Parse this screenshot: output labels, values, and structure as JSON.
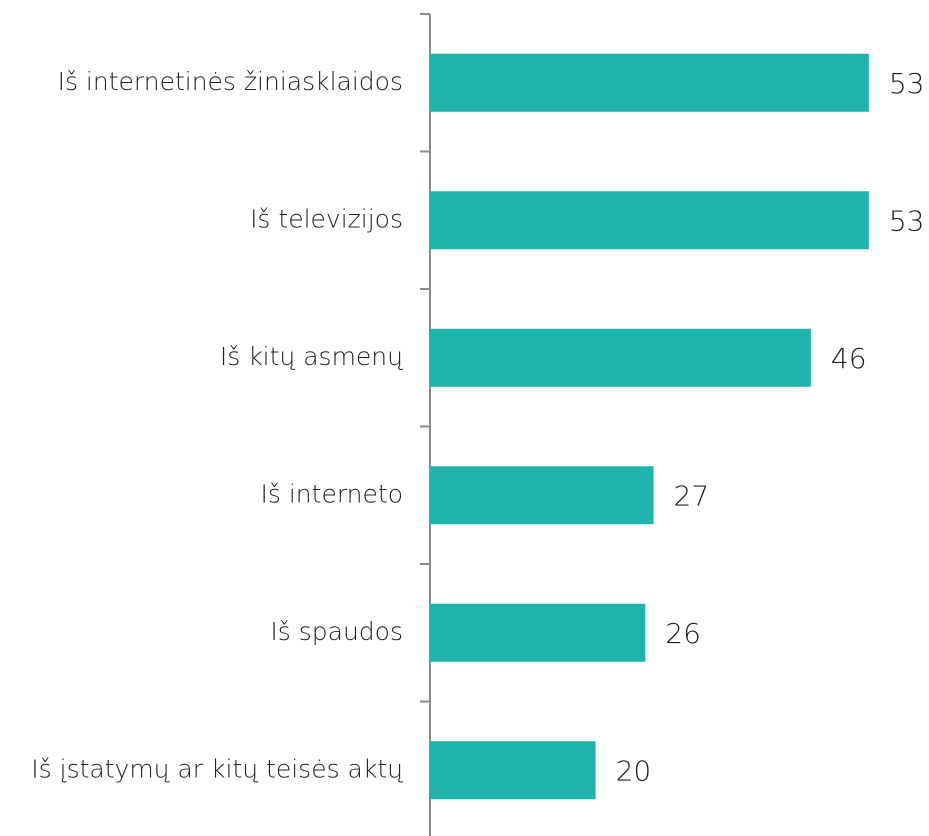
{
  "chart_data": {
    "type": "barh",
    "categories": [
      "Iš internetinės žiniasklaidos",
      "Iš televizijos",
      "Iš kitų asmenų",
      "Iš interneto",
      "Iš spaudos",
      "Iš įstatymų ar kitų teisės aktų"
    ],
    "values": [
      53,
      53,
      46,
      27,
      26,
      20
    ],
    "color": "#1fb3ad"
  }
}
